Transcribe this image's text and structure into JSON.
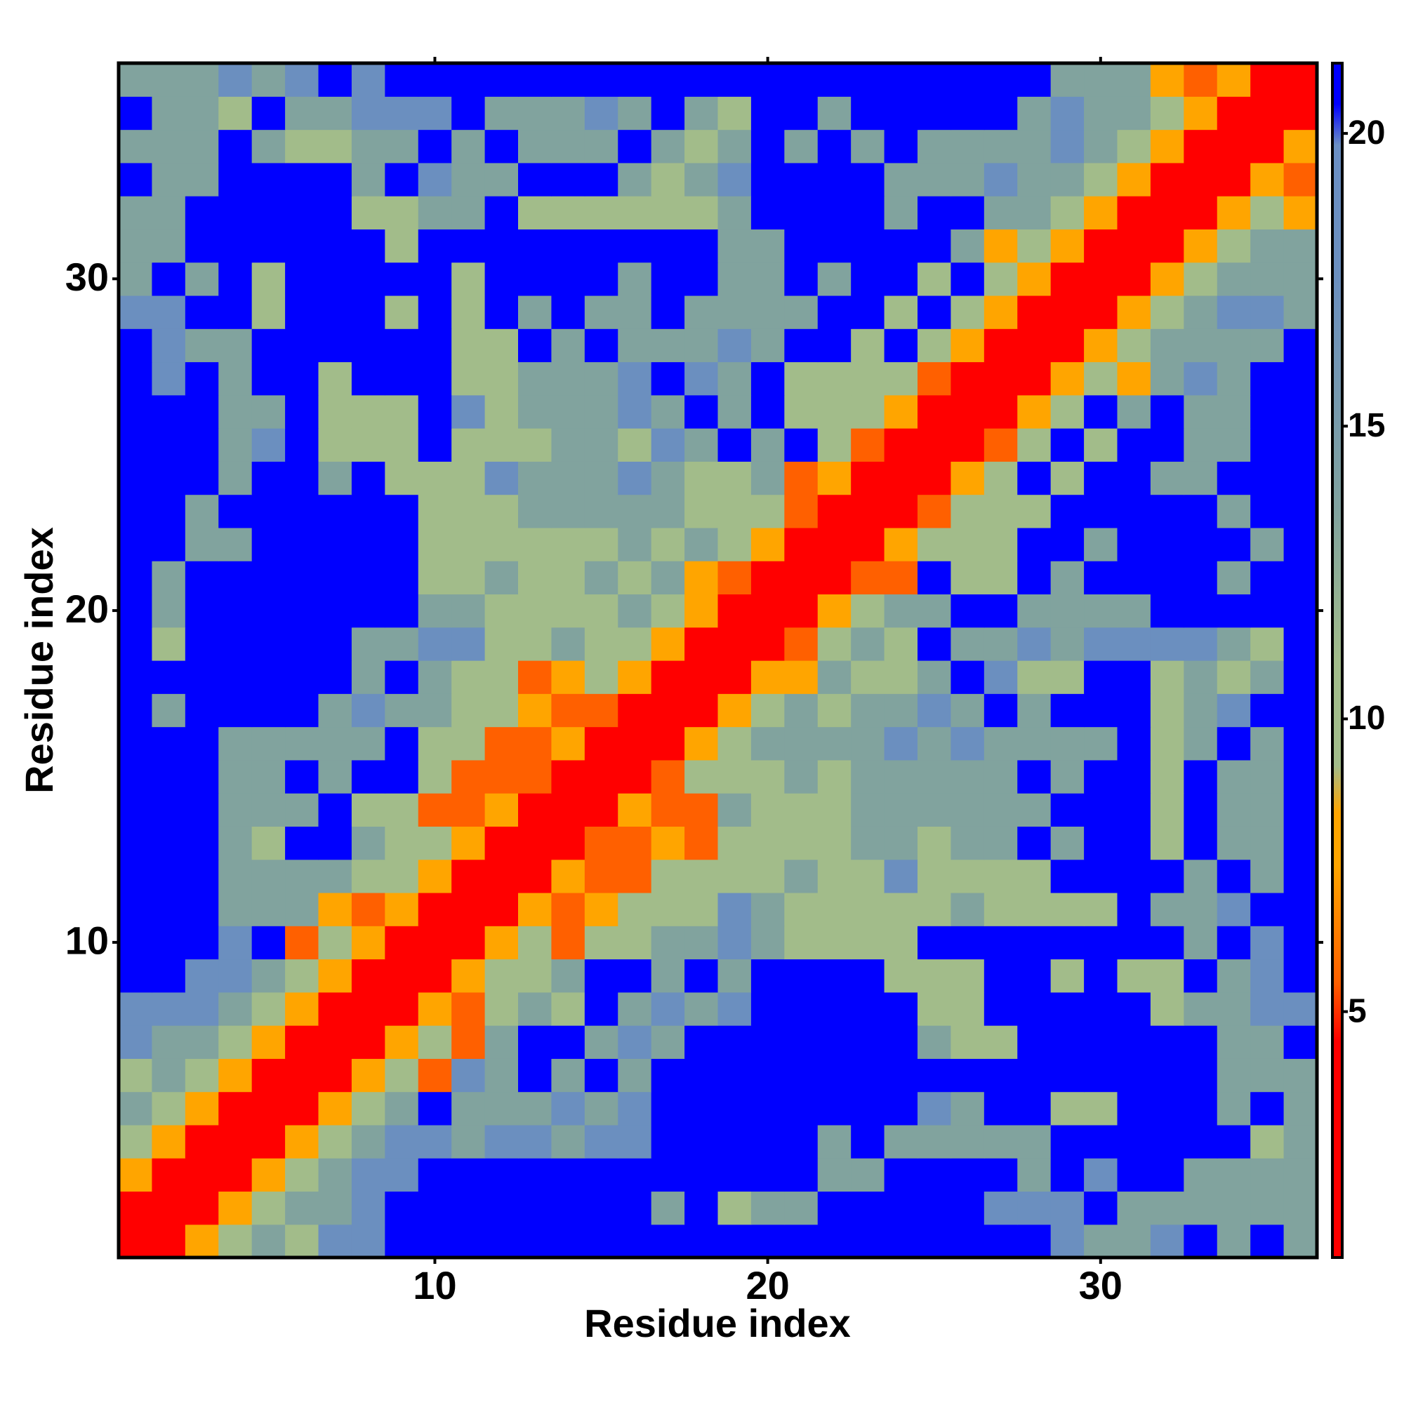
{
  "chart_data": {
    "type": "heatmap",
    "x_label": "Residue index",
    "y_label": "Residue index",
    "x": [
      1,
      2,
      3,
      4,
      5,
      6,
      7,
      8,
      9,
      10,
      11,
      12,
      13,
      14,
      15,
      16,
      17,
      18,
      19,
      20,
      21,
      22,
      23,
      24,
      25,
      26,
      27,
      28,
      29,
      30,
      31,
      32,
      33,
      34,
      35,
      36
    ],
    "y": [
      1,
      2,
      3,
      4,
      5,
      6,
      7,
      8,
      9,
      10,
      11,
      12,
      13,
      14,
      15,
      16,
      17,
      18,
      19,
      20,
      21,
      22,
      23,
      24,
      25,
      26,
      27,
      28,
      29,
      30,
      31,
      32,
      33,
      34,
      35,
      36
    ],
    "xlim": [
      0.5,
      36.5
    ],
    "ylim": [
      0.5,
      36.5
    ],
    "xticks": [
      10,
      20,
      30
    ],
    "yticks": [
      10,
      20,
      30
    ],
    "zlim": [
      0.8,
      21.2
    ],
    "zticks": [
      5,
      10,
      15,
      20
    ],
    "colorscale": [
      [
        0.8,
        "#ff0000"
      ],
      [
        4.5,
        "#ff0000"
      ],
      [
        5.5,
        "#ff6000"
      ],
      [
        7.5,
        "#ffa500"
      ],
      [
        8.4,
        "#ffa500"
      ],
      [
        9.2,
        "#a2bc8a"
      ],
      [
        11,
        "#a2bc8a"
      ],
      [
        13.5,
        "#81a39e"
      ],
      [
        17.5,
        "#6b8fbf"
      ],
      [
        19.8,
        "#6b8fc4"
      ],
      [
        20.5,
        "#0000ff"
      ],
      [
        21.2,
        "#0000ff"
      ]
    ],
    "z": [
      [
        3,
        3,
        7.5,
        10.5,
        13.5,
        10.5,
        17.5,
        17.5,
        21,
        21,
        21,
        21,
        21,
        21,
        21,
        21,
        21,
        21,
        21,
        21,
        21,
        21,
        21,
        21,
        21,
        21,
        21,
        21,
        17.5,
        13.5,
        13.5,
        17.5,
        21,
        13.5,
        21,
        13.5
      ],
      [
        3,
        3,
        3,
        7.5,
        10.5,
        13.5,
        13.5,
        17.5,
        21,
        21,
        21,
        21,
        21,
        21,
        21,
        21,
        13.5,
        21,
        10.5,
        13.5,
        13.5,
        21,
        21,
        21,
        21,
        21,
        17.5,
        17.5,
        17.5,
        21,
        13.5,
        13.5,
        13.5,
        13.5,
        13.5,
        13.5
      ],
      [
        7.5,
        3,
        3,
        3,
        7.5,
        10.5,
        13.5,
        17.5,
        17.5,
        21,
        21,
        21,
        21,
        21,
        21,
        21,
        21,
        21,
        21,
        21,
        21,
        13.5,
        13.5,
        21,
        21,
        21,
        21,
        13.5,
        21,
        17.5,
        21,
        21,
        13.5,
        13.5,
        13.5,
        13.5
      ],
      [
        10.5,
        7.5,
        3,
        3,
        3,
        7.5,
        10.5,
        13.5,
        17.5,
        17.5,
        13.5,
        17.5,
        17.5,
        13.5,
        17.5,
        17.5,
        21,
        21,
        21,
        21,
        21,
        13.5,
        21,
        13.5,
        13.5,
        13.5,
        13.5,
        13.5,
        21,
        21,
        21,
        21,
        21,
        21,
        10.5,
        13.5
      ],
      [
        13.5,
        10.5,
        7.5,
        3,
        3,
        3,
        7.5,
        10.5,
        13.5,
        21,
        13.5,
        13.5,
        13.5,
        17.5,
        13.5,
        17.5,
        21,
        21,
        21,
        21,
        21,
        21,
        21,
        21,
        17.5,
        13.5,
        21,
        21,
        10.5,
        10.5,
        21,
        21,
        21,
        13.5,
        21,
        13.5
      ],
      [
        10.5,
        13.5,
        10.5,
        7.5,
        3,
        3,
        3,
        7.5,
        10.5,
        5.5,
        17.5,
        13.5,
        21,
        13.5,
        21,
        13.5,
        21,
        21,
        21,
        21,
        21,
        21,
        21,
        21,
        21,
        21,
        21,
        21,
        21,
        21,
        21,
        21,
        21,
        13.5,
        13.5,
        13.5
      ],
      [
        17.5,
        13.5,
        13.5,
        10.5,
        7.5,
        3,
        3,
        3,
        7.5,
        10.5,
        5.5,
        13.5,
        21,
        21,
        13.5,
        17.5,
        13.5,
        21,
        21,
        21,
        21,
        21,
        21,
        21,
        13.5,
        10.5,
        10.5,
        21,
        21,
        21,
        21,
        21,
        21,
        13.5,
        13.5,
        21
      ],
      [
        17.5,
        17.5,
        17.5,
        13.5,
        10.5,
        7.5,
        3,
        3,
        3,
        7.5,
        5.5,
        10.5,
        13.5,
        10.5,
        21,
        13.5,
        17.5,
        13.5,
        17.5,
        21,
        21,
        21,
        21,
        21,
        10.5,
        10.5,
        21,
        21,
        21,
        21,
        21,
        10.5,
        13.5,
        13.5,
        17.5,
        17.5
      ],
      [
        21,
        21,
        17.5,
        17.5,
        13.5,
        10.5,
        7.5,
        3,
        3,
        3,
        7.5,
        10.5,
        10.5,
        13.5,
        21,
        21,
        13.5,
        21,
        13.5,
        21,
        21,
        21,
        21,
        10.5,
        10.5,
        10.5,
        21,
        21,
        10.5,
        21,
        10.5,
        10.5,
        21,
        13.5,
        17.5,
        21
      ],
      [
        21,
        21,
        21,
        17.5,
        21,
        5.5,
        10.5,
        7.5,
        3,
        3,
        3,
        7.5,
        10.5,
        5.5,
        10.5,
        10.5,
        13.5,
        13.5,
        17.5,
        13.5,
        10.5,
        10.5,
        10.5,
        10.5,
        21,
        21,
        21,
        21,
        21,
        21,
        21,
        21,
        13.5,
        21,
        17.5,
        21
      ],
      [
        21,
        21,
        21,
        13.5,
        13.5,
        13.5,
        7.5,
        5.5,
        7.5,
        3,
        3,
        3,
        7.5,
        5.5,
        7.5,
        10.5,
        10.5,
        10.5,
        17.5,
        13.5,
        10.5,
        10.5,
        10.5,
        10.5,
        10.5,
        13.5,
        10.5,
        10.5,
        10.5,
        10.5,
        21,
        13.5,
        13.5,
        17.5,
        21,
        21
      ],
      [
        21,
        21,
        21,
        13.5,
        13.5,
        13.5,
        13.5,
        10.5,
        10.5,
        7.5,
        3,
        3,
        3,
        7.5,
        5.5,
        5.5,
        10.5,
        10.5,
        10.5,
        10.5,
        13.5,
        10.5,
        10.5,
        17.5,
        10.5,
        10.5,
        10.5,
        10.5,
        21,
        21,
        21,
        21,
        13.5,
        21,
        13.5,
        21
      ],
      [
        21,
        21,
        21,
        13.5,
        10.5,
        21,
        21,
        13.5,
        10.5,
        10.5,
        7.5,
        3,
        3,
        3,
        5.5,
        5.5,
        7.5,
        5.5,
        10.5,
        10.5,
        10.5,
        10.5,
        13.5,
        13.5,
        10.5,
        13.5,
        13.5,
        21,
        13.5,
        21,
        21,
        10.5,
        21,
        13.5,
        13.5,
        21
      ],
      [
        21,
        21,
        21,
        13.5,
        13.5,
        13.5,
        21,
        10.5,
        10.5,
        5.5,
        5.5,
        7.5,
        3,
        3,
        3,
        7.5,
        5.5,
        5.5,
        13.5,
        10.5,
        10.5,
        10.5,
        13.5,
        13.5,
        13.5,
        13.5,
        13.5,
        13.5,
        21,
        21,
        21,
        10.5,
        21,
        13.5,
        13.5,
        21
      ],
      [
        21,
        21,
        21,
        13.5,
        13.5,
        21,
        13.5,
        21,
        21,
        10.5,
        5.5,
        5.5,
        5.5,
        3,
        3,
        3,
        5.5,
        10.5,
        10.5,
        10.5,
        13.5,
        10.5,
        13.5,
        13.5,
        13.5,
        13.5,
        13.5,
        21,
        13.5,
        21,
        21,
        10.5,
        21,
        13.5,
        13.5,
        21
      ],
      [
        21,
        21,
        21,
        13.5,
        13.5,
        13.5,
        13.5,
        13.5,
        21,
        10.5,
        10.5,
        5.5,
        5.5,
        7.5,
        3,
        3,
        3,
        7.5,
        10.5,
        13.5,
        13.5,
        13.5,
        13.5,
        17.5,
        13.5,
        17.5,
        13.5,
        13.5,
        13.5,
        13.5,
        21,
        10.5,
        13.5,
        21,
        13.5,
        21
      ],
      [
        21,
        13.5,
        21,
        21,
        21,
        21,
        13.5,
        17.5,
        13.5,
        13.5,
        10.5,
        10.5,
        7.5,
        5.5,
        5.5,
        3,
        3,
        3,
        7.5,
        10.5,
        13.5,
        10.5,
        13.5,
        13.5,
        17.5,
        13.5,
        21,
        13.5,
        21,
        21,
        21,
        10.5,
        13.5,
        17.5,
        21,
        21
      ],
      [
        21,
        21,
        21,
        21,
        21,
        21,
        21,
        13.5,
        21,
        13.5,
        10.5,
        10.5,
        5.5,
        7.5,
        10.5,
        7.5,
        3,
        3,
        3,
        7.5,
        7.5,
        13.5,
        10.5,
        10.5,
        13.5,
        21,
        17.5,
        10.5,
        10.5,
        21,
        21,
        10.5,
        13.5,
        10.5,
        13.5,
        21
      ],
      [
        21,
        10.5,
        21,
        21,
        21,
        21,
        21,
        13.5,
        13.5,
        17.5,
        17.5,
        10.5,
        10.5,
        13.5,
        10.5,
        10.5,
        7.5,
        3,
        3,
        3,
        5.5,
        10.5,
        13.5,
        10.5,
        21,
        13.5,
        13.5,
        17.5,
        13.5,
        17.5,
        17.5,
        17.5,
        17.5,
        13.5,
        10.5,
        21
      ],
      [
        21,
        13.5,
        21,
        21,
        21,
        21,
        21,
        21,
        21,
        13.5,
        13.5,
        10.5,
        10.5,
        10.5,
        10.5,
        13.5,
        10.5,
        7.5,
        3,
        3,
        3,
        7.5,
        10.5,
        13.5,
        13.5,
        21,
        21,
        13.5,
        13.5,
        13.5,
        13.5,
        21,
        21,
        21,
        21,
        21
      ],
      [
        21,
        13.5,
        21,
        21,
        21,
        21,
        21,
        21,
        21,
        10.5,
        10.5,
        13.5,
        10.5,
        10.5,
        13.5,
        10.5,
        13.5,
        7.5,
        5.5,
        3,
        3,
        3,
        5.5,
        5.5,
        21,
        10.5,
        10.5,
        21,
        13.5,
        21,
        21,
        21,
        21,
        13.5,
        21,
        21
      ],
      [
        21,
        21,
        13.5,
        13.5,
        21,
        21,
        21,
        21,
        21,
        10.5,
        10.5,
        10.5,
        10.5,
        10.5,
        10.5,
        13.5,
        10.5,
        13.5,
        10.5,
        7.5,
        3,
        3,
        3,
        7.5,
        10.5,
        10.5,
        10.5,
        21,
        21,
        13.5,
        21,
        21,
        21,
        21,
        13.5,
        21
      ],
      [
        21,
        21,
        13.5,
        21,
        21,
        21,
        21,
        21,
        21,
        10.5,
        10.5,
        10.5,
        13.5,
        13.5,
        13.5,
        13.5,
        13.5,
        10.5,
        10.5,
        10.5,
        5.5,
        3,
        3,
        3,
        5.5,
        10.5,
        10.5,
        10.5,
        21,
        21,
        21,
        21,
        21,
        13.5,
        21,
        21
      ],
      [
        21,
        21,
        21,
        13.5,
        21,
        21,
        13.5,
        21,
        10.5,
        10.5,
        10.5,
        17.5,
        13.5,
        13.5,
        13.5,
        17.5,
        13.5,
        10.5,
        10.5,
        13.5,
        5.5,
        7.5,
        3,
        3,
        3,
        7.5,
        10.5,
        21,
        10.5,
        21,
        21,
        13.5,
        13.5,
        21,
        21,
        21
      ],
      [
        21,
        21,
        21,
        13.5,
        17.5,
        21,
        10.5,
        10.5,
        10.5,
        21,
        10.5,
        10.5,
        10.5,
        13.5,
        13.5,
        10.5,
        17.5,
        13.5,
        21,
        13.5,
        21,
        10.5,
        5.5,
        3,
        3,
        3,
        5.5,
        10.5,
        21,
        10.5,
        21,
        21,
        13.5,
        13.5,
        21,
        21
      ],
      [
        21,
        21,
        21,
        13.5,
        13.5,
        21,
        10.5,
        10.5,
        10.5,
        21,
        17.5,
        10.5,
        13.5,
        13.5,
        13.5,
        17.5,
        13.5,
        21,
        13.5,
        21,
        10.5,
        10.5,
        10.5,
        7.5,
        3,
        3,
        3,
        7.5,
        10.5,
        21,
        13.5,
        21,
        13.5,
        13.5,
        21,
        21
      ],
      [
        21,
        17.5,
        21,
        13.5,
        21,
        21,
        10.5,
        21,
        21,
        21,
        10.5,
        10.5,
        13.5,
        13.5,
        13.5,
        17.5,
        21,
        17.5,
        13.5,
        21,
        10.5,
        10.5,
        10.5,
        10.5,
        5.5,
        3,
        3,
        3,
        7.5,
        10.5,
        7.5,
        13.5,
        17.5,
        13.5,
        21,
        21
      ],
      [
        21,
        17.5,
        13.5,
        13.5,
        21,
        21,
        21,
        21,
        21,
        21,
        10.5,
        10.5,
        21,
        13.5,
        21,
        13.5,
        13.5,
        13.5,
        17.5,
        13.5,
        21,
        21,
        10.5,
        21,
        10.5,
        7.5,
        3,
        3,
        3,
        7.5,
        10.5,
        13.5,
        13.5,
        13.5,
        13.5,
        21
      ],
      [
        17.5,
        17.5,
        21,
        21,
        10.5,
        21,
        21,
        21,
        10.5,
        21,
        10.5,
        21,
        13.5,
        21,
        13.5,
        13.5,
        21,
        13.5,
        13.5,
        13.5,
        13.5,
        21,
        21,
        10.5,
        21,
        10.5,
        7.5,
        3,
        3,
        3,
        7.5,
        10.5,
        13.5,
        17.5,
        17.5,
        13.5
      ],
      [
        13.5,
        21,
        13.5,
        21,
        10.5,
        21,
        21,
        21,
        21,
        21,
        10.5,
        21,
        21,
        21,
        21,
        13.5,
        21,
        21,
        13.5,
        13.5,
        21,
        13.5,
        21,
        21,
        10.5,
        21,
        10.5,
        7.5,
        3,
        3,
        3,
        7.5,
        10.5,
        13.5,
        13.5,
        13.5
      ],
      [
        13.5,
        13.5,
        21,
        21,
        21,
        21,
        21,
        21,
        10.5,
        21,
        21,
        21,
        21,
        21,
        21,
        21,
        21,
        21,
        13.5,
        13.5,
        21,
        21,
        21,
        21,
        21,
        13.5,
        7.5,
        10.5,
        7.5,
        3,
        3,
        3,
        7.5,
        10.5,
        13.5,
        13.5
      ],
      [
        13.5,
        13.5,
        21,
        21,
        21,
        21,
        21,
        10.5,
        10.5,
        13.5,
        13.5,
        21,
        10.5,
        10.5,
        10.5,
        10.5,
        10.5,
        10.5,
        13.5,
        21,
        21,
        21,
        21,
        13.5,
        21,
        21,
        13.5,
        13.5,
        10.5,
        7.5,
        3,
        3,
        3,
        7.5,
        10.5,
        7.5
      ],
      [
        21,
        13.5,
        13.5,
        21,
        21,
        21,
        21,
        13.5,
        21,
        17.5,
        13.5,
        13.5,
        21,
        21,
        21,
        13.5,
        10.5,
        13.5,
        17.5,
        21,
        21,
        21,
        21,
        13.5,
        13.5,
        13.5,
        17.5,
        13.5,
        13.5,
        10.5,
        7.5,
        3,
        3,
        3,
        7.5,
        5.5
      ],
      [
        13.5,
        13.5,
        13.5,
        21,
        13.5,
        10.5,
        10.5,
        13.5,
        13.5,
        21,
        13.5,
        21,
        13.5,
        13.5,
        13.5,
        21,
        13.5,
        10.5,
        13.5,
        21,
        13.5,
        21,
        13.5,
        21,
        13.5,
        13.5,
        13.5,
        13.5,
        17.5,
        13.5,
        10.5,
        7.5,
        3,
        3,
        3,
        7.5
      ],
      [
        21,
        13.5,
        13.5,
        10.5,
        21,
        13.5,
        13.5,
        17.5,
        17.5,
        17.5,
        21,
        13.5,
        13.5,
        13.5,
        17.5,
        13.5,
        21,
        13.5,
        10.5,
        21,
        21,
        13.5,
        21,
        21,
        21,
        21,
        21,
        13.5,
        17.5,
        13.5,
        13.5,
        10.5,
        7.5,
        3,
        3,
        3
      ],
      [
        13.5,
        13.5,
        13.5,
        17.5,
        13.5,
        17.5,
        21,
        17.5,
        21,
        21,
        21,
        21,
        21,
        21,
        21,
        21,
        21,
        21,
        21,
        21,
        21,
        21,
        21,
        21,
        21,
        21,
        21,
        21,
        13.5,
        13.5,
        13.5,
        7.5,
        5.5,
        7.5,
        3,
        3
      ]
    ]
  }
}
